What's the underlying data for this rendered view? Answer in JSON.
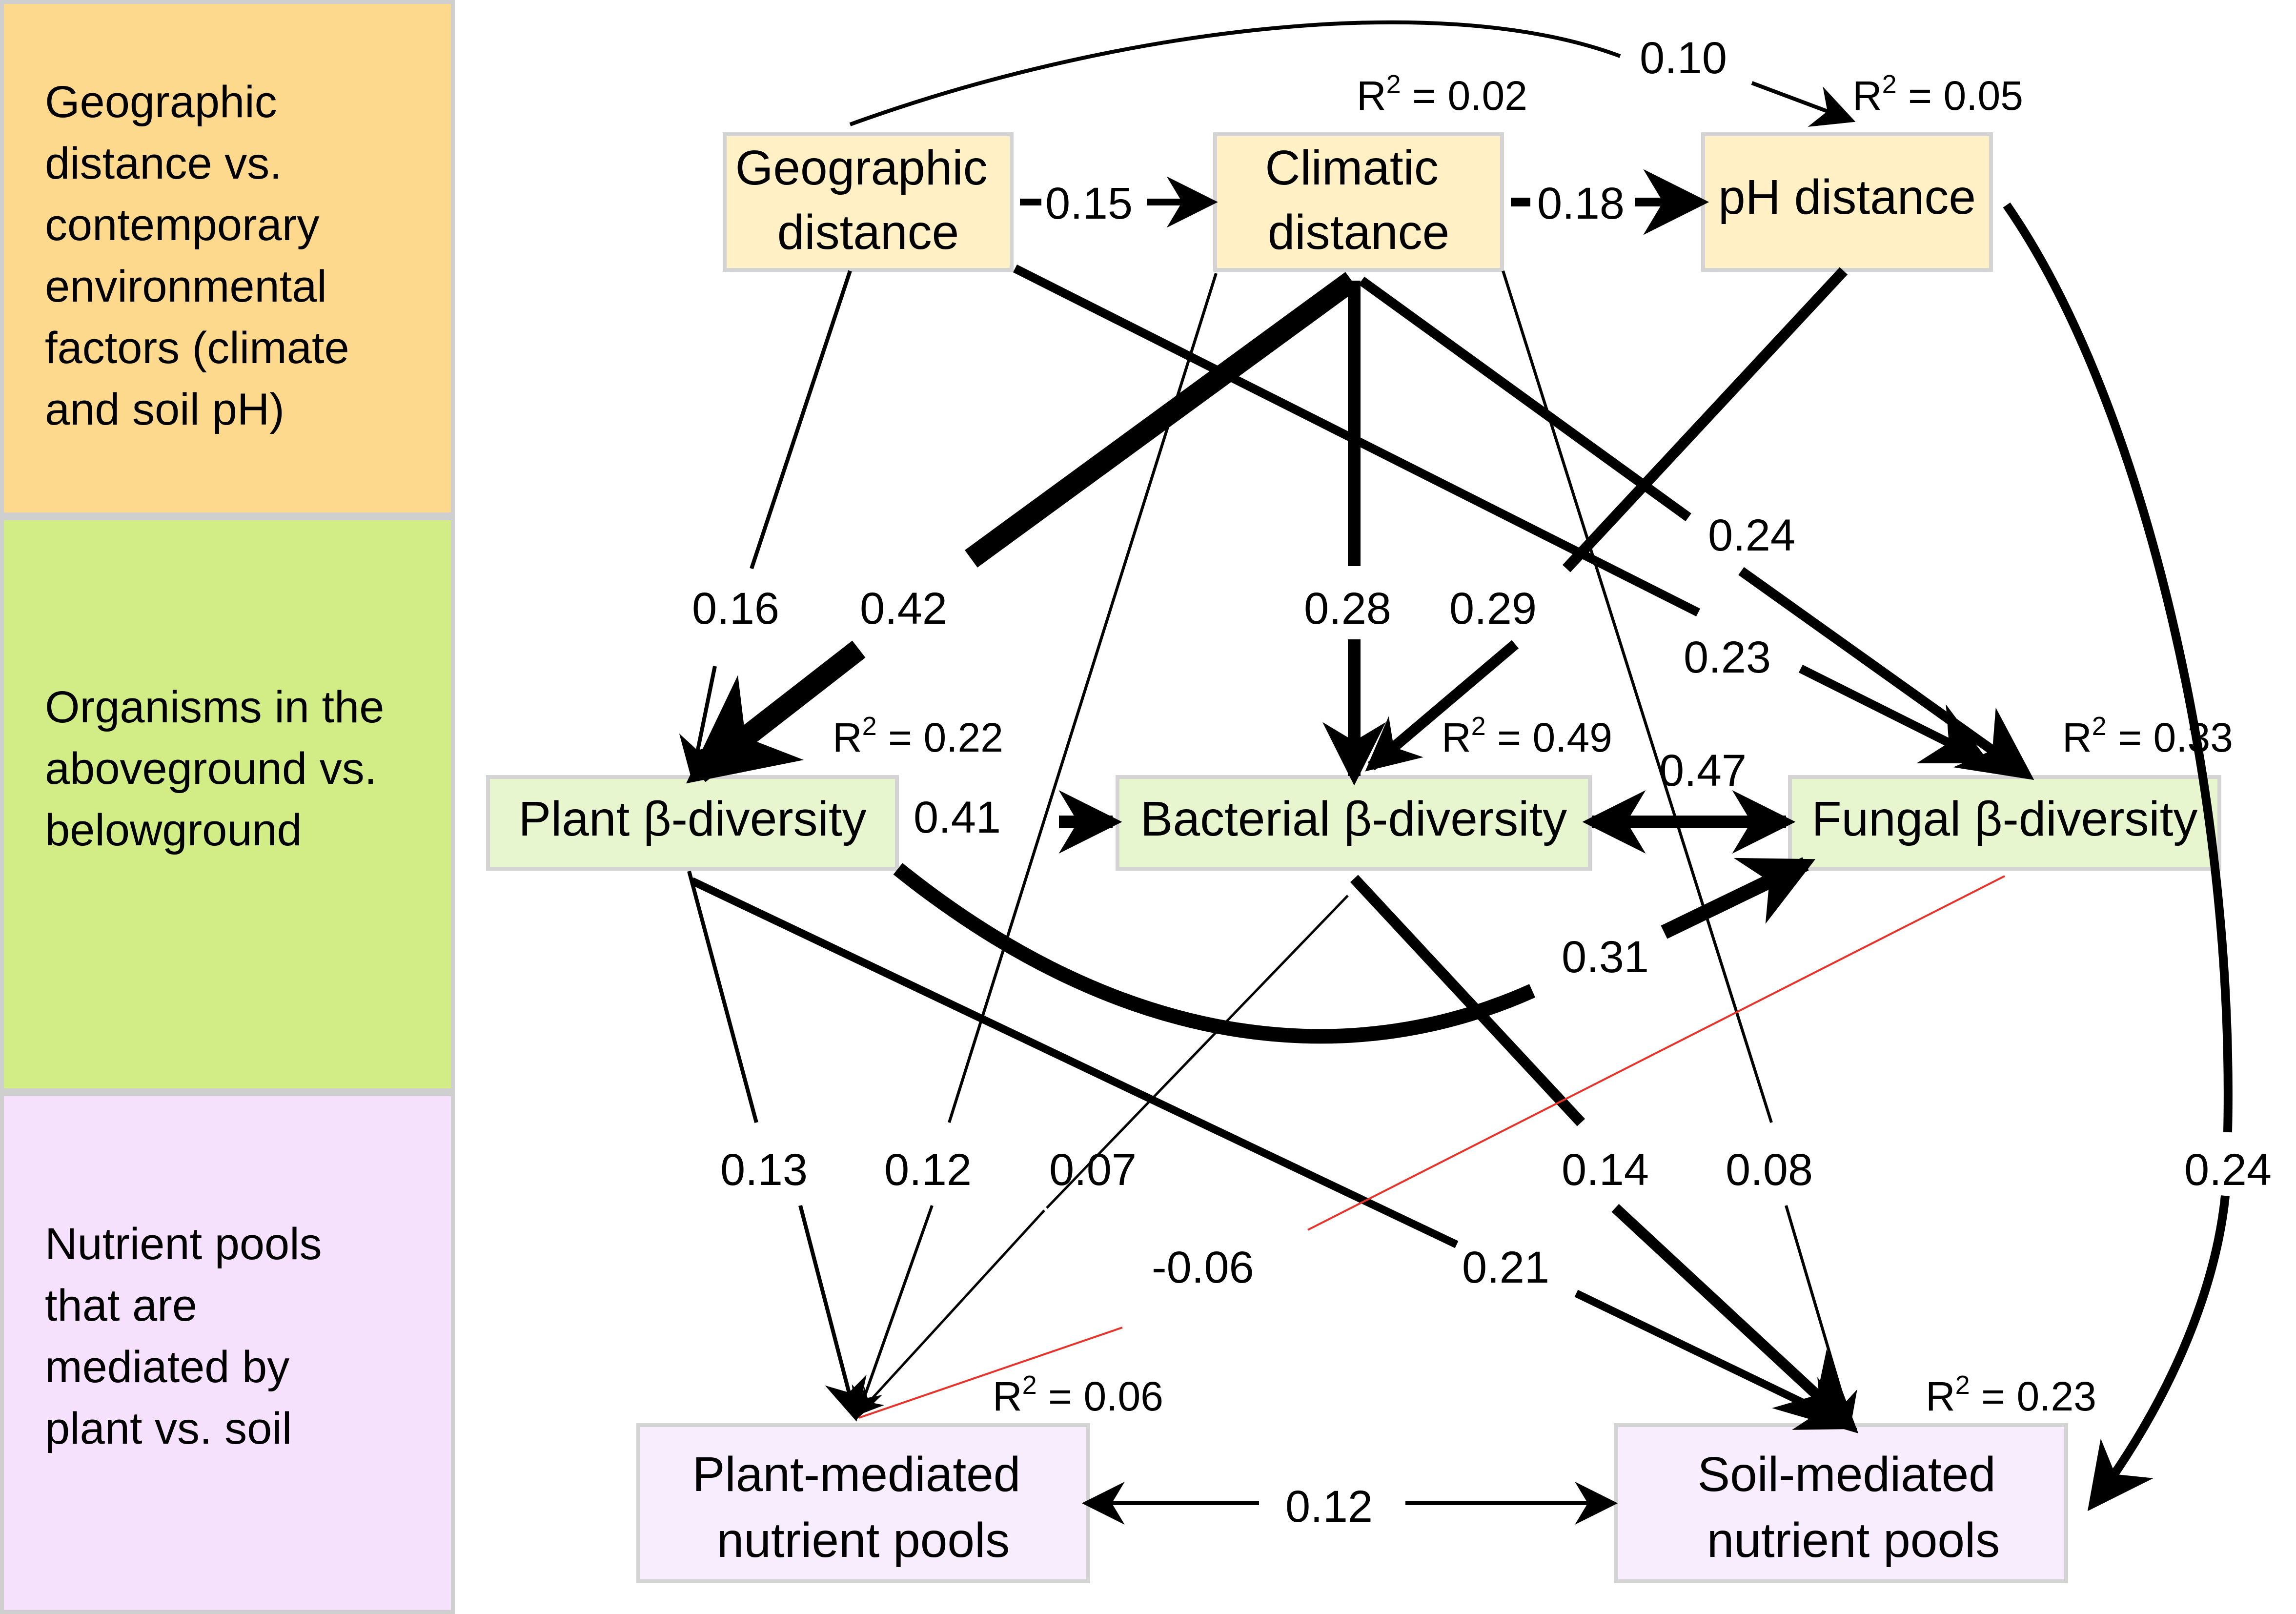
{
  "bands": [
    {
      "id": "top",
      "color": "#FCD98C",
      "lines": [
        "Geographic",
        "distance vs.",
        "contemporary",
        "environmental",
        "factors (climate",
        "and soil pH)"
      ]
    },
    {
      "id": "middle",
      "color": "#D2EC86",
      "lines": [
        "Organisms in the",
        "aboveground vs.",
        "belowground"
      ]
    },
    {
      "id": "bottom",
      "color": "#F5E1FB",
      "lines": [
        "Nutrient pools",
        "that are",
        "mediated by",
        "plant vs. soil"
      ]
    }
  ],
  "nodes": {
    "geographic": {
      "lines": [
        "Geographic",
        "distance"
      ],
      "fill": "#FFF0C6"
    },
    "climatic": {
      "lines": [
        "Climatic",
        "distance"
      ],
      "fill": "#FFF0C6",
      "r2": "0.02"
    },
    "ph": {
      "lines": [
        "pH distance"
      ],
      "fill": "#FFF0C6",
      "r2": "0.05"
    },
    "plant": {
      "lines": [
        "Plant β-diversity"
      ],
      "fill": "#E8F6CF",
      "r2": "0.22"
    },
    "bacterial": {
      "lines": [
        "Bacterial β-diversity"
      ],
      "fill": "#E8F6CF",
      "r2": "0.49"
    },
    "fungal": {
      "lines": [
        "Fungal β-diversity"
      ],
      "fill": "#E8F6CF",
      "r2": "0.33"
    },
    "plant_nutrient": {
      "lines": [
        "Plant-mediated",
        "nutrient pools"
      ],
      "fill": "#F8EDFD",
      "r2": "0.06"
    },
    "soil_nutrient": {
      "lines": [
        "Soil-mediated",
        "nutrient pools"
      ],
      "fill": "#F8EDFD",
      "r2": "0.23"
    }
  },
  "r2_prefix": "R",
  "r2_exponent": "2",
  "r2_equals": " = ",
  "paths": [
    {
      "id": "geo-clim",
      "from": "geographic",
      "to": "climatic",
      "coef": "0.15",
      "sign": "positive"
    },
    {
      "id": "clim-ph",
      "from": "climatic",
      "to": "ph",
      "coef": "0.18",
      "sign": "positive"
    },
    {
      "id": "geo-ph",
      "from": "geographic",
      "to": "ph",
      "coef": "0.10",
      "sign": "positive"
    },
    {
      "id": "geo-plant",
      "from": "geographic",
      "to": "plant",
      "coef": "0.16",
      "sign": "positive"
    },
    {
      "id": "clim-plant",
      "from": "climatic",
      "to": "plant",
      "coef": "0.42",
      "sign": "positive"
    },
    {
      "id": "clim-bact",
      "from": "climatic",
      "to": "bacterial",
      "coef": "0.28",
      "sign": "positive"
    },
    {
      "id": "ph-bact",
      "from": "ph",
      "to": "bacterial",
      "coef": "0.29",
      "sign": "positive"
    },
    {
      "id": "clim-fung",
      "from": "climatic",
      "to": "fungal",
      "coef": "0.24",
      "sign": "positive"
    },
    {
      "id": "geo-fung",
      "from": "geographic",
      "to": "fungal",
      "coef": "0.23",
      "sign": "positive"
    },
    {
      "id": "plant-bact",
      "from": "plant",
      "to": "bacterial",
      "coef": "0.41",
      "sign": "positive"
    },
    {
      "id": "bact-fung",
      "from": "bacterial",
      "to": "fungal",
      "coef": "0.47",
      "sign": "positive"
    },
    {
      "id": "plant-fung",
      "from": "plant",
      "to": "fungal",
      "coef": "0.31",
      "sign": "positive"
    },
    {
      "id": "ph-soil",
      "from": "ph",
      "to": "soil_nutrient",
      "coef": "0.24",
      "sign": "positive"
    },
    {
      "id": "plant-pn",
      "from": "plant",
      "to": "plant_nutrient",
      "coef": "0.13",
      "sign": "positive"
    },
    {
      "id": "clim-pn",
      "from": "climatic",
      "to": "plant_nutrient",
      "coef": "0.12",
      "sign": "positive"
    },
    {
      "id": "bact-pn",
      "from": "bacterial",
      "to": "plant_nutrient",
      "coef": "0.07",
      "sign": "positive"
    },
    {
      "id": "fung-pn",
      "from": "fungal",
      "to": "plant_nutrient",
      "coef": "-0.06",
      "sign": "negative"
    },
    {
      "id": "bact-soil",
      "from": "bacterial",
      "to": "soil_nutrient",
      "coef": "0.14",
      "sign": "positive"
    },
    {
      "id": "clim-soil",
      "from": "climatic",
      "to": "soil_nutrient",
      "coef": "0.08",
      "sign": "positive"
    },
    {
      "id": "plant-soil",
      "from": "plant",
      "to": "soil_nutrient",
      "coef": "0.21",
      "sign": "positive"
    },
    {
      "id": "pn-soil",
      "from": "plant_nutrient",
      "to": "soil_nutrient",
      "coef": "0.12",
      "sign": "positive"
    }
  ],
  "colors": {
    "positive": "#000000",
    "negative": "#E8332A",
    "node_border": "#D4D4D4",
    "band_border": "#CFCFCF"
  }
}
